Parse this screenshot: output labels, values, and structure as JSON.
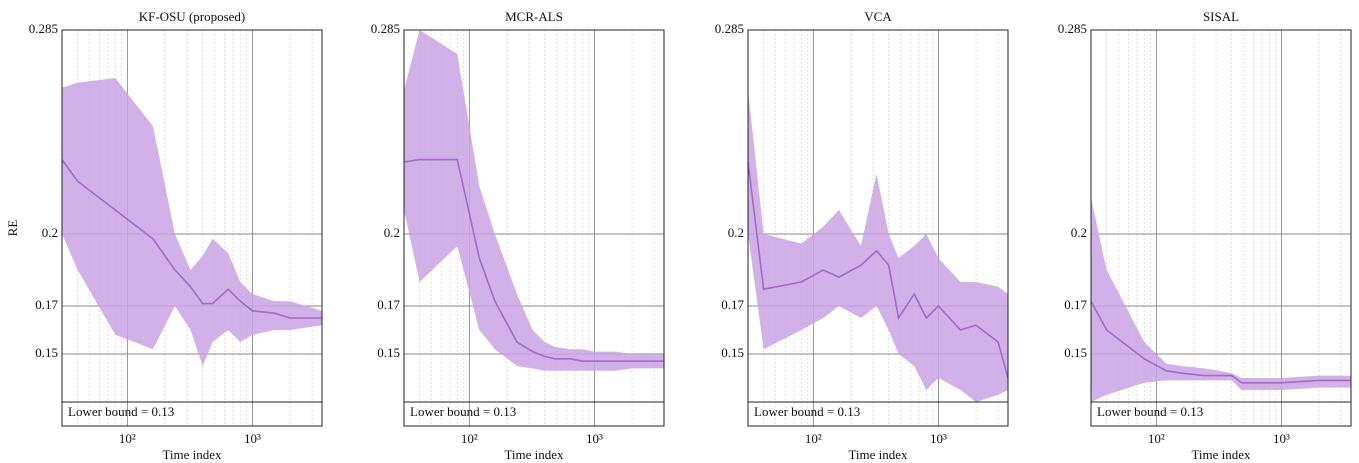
{
  "chart_data": [
    {
      "type": "line",
      "title": "KF-OSU (proposed)",
      "xlabel": "Time index",
      "ylabel": "RE",
      "xscale": "log",
      "xlim": [
        30,
        3600
      ],
      "ylim": [
        0.12,
        0.285
      ],
      "xticks": [
        {
          "value": 100,
          "label": "10²"
        },
        {
          "value": 1000,
          "label": "10³"
        }
      ],
      "xminor": [
        40,
        50,
        60,
        70,
        80,
        90,
        200,
        300,
        400,
        500,
        600,
        700,
        800,
        900,
        2000,
        3000
      ],
      "yticks": [
        0.15,
        0.17,
        0.2,
        0.285
      ],
      "grid": true,
      "color": "#a36ac8",
      "band_color": "#c9a3e3",
      "x": [
        30,
        40,
        80,
        160,
        240,
        320,
        400,
        480,
        640,
        800,
        1000,
        1500,
        2000,
        3600
      ],
      "values": [
        0.231,
        0.222,
        0.21,
        0.198,
        0.185,
        0.178,
        0.171,
        0.171,
        0.177,
        0.172,
        0.168,
        0.167,
        0.165,
        0.165
      ],
      "upper": [
        0.261,
        0.263,
        0.265,
        0.245,
        0.2,
        0.185,
        0.191,
        0.198,
        0.192,
        0.18,
        0.175,
        0.172,
        0.172,
        0.168
      ],
      "lower": [
        0.2,
        0.185,
        0.158,
        0.152,
        0.17,
        0.16,
        0.145,
        0.155,
        0.16,
        0.155,
        0.158,
        0.16,
        0.16,
        0.162
      ],
      "annotation": {
        "text": "Lower bound = 0.13",
        "value": 0.13
      }
    },
    {
      "type": "line",
      "title": "MCR-ALS",
      "xlabel": "Time index",
      "xscale": "log",
      "xlim": [
        30,
        3600
      ],
      "ylim": [
        0.12,
        0.285
      ],
      "xticks": [
        {
          "value": 100,
          "label": "10²"
        },
        {
          "value": 1000,
          "label": "10³"
        }
      ],
      "xminor": [
        40,
        50,
        60,
        70,
        80,
        90,
        200,
        300,
        400,
        500,
        600,
        700,
        800,
        900,
        2000,
        3000
      ],
      "yticks": [
        0.15,
        0.17,
        0.2,
        0.285
      ],
      "grid": true,
      "color": "#a36ac8",
      "band_color": "#c9a3e3",
      "x": [
        30,
        40,
        80,
        120,
        160,
        240,
        320,
        400,
        480,
        640,
        800,
        1000,
        1500,
        2000,
        3600
      ],
      "values": [
        0.23,
        0.231,
        0.231,
        0.19,
        0.172,
        0.155,
        0.151,
        0.149,
        0.148,
        0.148,
        0.147,
        0.147,
        0.147,
        0.147,
        0.147
      ],
      "upper": [
        0.26,
        0.285,
        0.275,
        0.22,
        0.2,
        0.175,
        0.16,
        0.155,
        0.153,
        0.152,
        0.152,
        0.151,
        0.151,
        0.15,
        0.15
      ],
      "lower": [
        0.21,
        0.18,
        0.195,
        0.16,
        0.152,
        0.145,
        0.144,
        0.143,
        0.143,
        0.143,
        0.143,
        0.143,
        0.143,
        0.144,
        0.144
      ],
      "annotation": {
        "text": "Lower bound = 0.13",
        "value": 0.13
      }
    },
    {
      "type": "line",
      "title": "VCA",
      "xlabel": "Time index",
      "xscale": "log",
      "xlim": [
        30,
        3600
      ],
      "ylim": [
        0.12,
        0.285
      ],
      "xticks": [
        {
          "value": 100,
          "label": "10²"
        },
        {
          "value": 1000,
          "label": "10³"
        }
      ],
      "xminor": [
        40,
        50,
        60,
        70,
        80,
        90,
        200,
        300,
        400,
        500,
        600,
        700,
        800,
        900,
        2000,
        3000
      ],
      "yticks": [
        0.15,
        0.17,
        0.2,
        0.285
      ],
      "grid": true,
      "color": "#a36ac8",
      "band_color": "#c9a3e3",
      "x": [
        30,
        40,
        80,
        120,
        160,
        240,
        320,
        400,
        480,
        640,
        800,
        1000,
        1500,
        2000,
        3000,
        3600
      ],
      "values": [
        0.23,
        0.177,
        0.18,
        0.185,
        0.182,
        0.187,
        0.193,
        0.187,
        0.165,
        0.175,
        0.165,
        0.17,
        0.16,
        0.162,
        0.155,
        0.14
      ],
      "upper": [
        0.26,
        0.2,
        0.196,
        0.203,
        0.21,
        0.195,
        0.225,
        0.2,
        0.19,
        0.195,
        0.2,
        0.19,
        0.18,
        0.18,
        0.178,
        0.175
      ],
      "lower": [
        0.2,
        0.152,
        0.16,
        0.165,
        0.17,
        0.165,
        0.17,
        0.16,
        0.15,
        0.145,
        0.135,
        0.14,
        0.135,
        0.13,
        0.133,
        0.135
      ],
      "annotation": {
        "text": "Lower bound = 0.13",
        "value": 0.13
      }
    },
    {
      "type": "line",
      "title": "SISAL",
      "xlabel": "Time index",
      "xscale": "log",
      "xlim": [
        30,
        3600
      ],
      "ylim": [
        0.12,
        0.285
      ],
      "xticks": [
        {
          "value": 100,
          "label": "10²"
        },
        {
          "value": 1000,
          "label": "10³"
        }
      ],
      "xminor": [
        40,
        50,
        60,
        70,
        80,
        90,
        200,
        300,
        400,
        500,
        600,
        700,
        800,
        900,
        2000,
        3000
      ],
      "yticks": [
        0.15,
        0.17,
        0.2,
        0.285
      ],
      "grid": true,
      "color": "#a36ac8",
      "band_color": "#c9a3e3",
      "x": [
        30,
        40,
        80,
        120,
        160,
        240,
        320,
        400,
        480,
        1000,
        2000,
        3600
      ],
      "values": [
        0.172,
        0.16,
        0.148,
        0.143,
        0.142,
        0.141,
        0.141,
        0.141,
        0.138,
        0.138,
        0.139,
        0.139
      ],
      "upper": [
        0.215,
        0.185,
        0.155,
        0.146,
        0.145,
        0.144,
        0.143,
        0.142,
        0.14,
        0.14,
        0.141,
        0.141
      ],
      "lower": [
        0.13,
        0.133,
        0.138,
        0.139,
        0.139,
        0.139,
        0.139,
        0.139,
        0.135,
        0.135,
        0.136,
        0.136
      ],
      "annotation": {
        "text": "Lower bound = 0.13",
        "value": 0.13
      }
    }
  ]
}
